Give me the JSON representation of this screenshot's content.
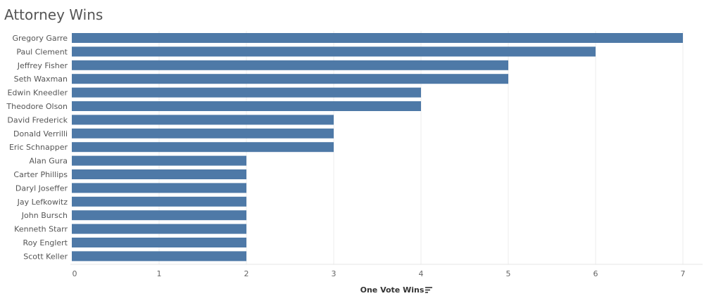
{
  "chart_data": {
    "type": "bar",
    "orientation": "horizontal",
    "title": "Attorney Wins",
    "xlabel": "One Vote Wins",
    "ylabel": "",
    "categories": [
      "Gregory Garre",
      "Paul Clement",
      "Jeffrey Fisher",
      "Seth Waxman",
      "Edwin Kneedler",
      "Theodore Olson",
      "David Frederick",
      "Donald Verrilli",
      "Eric Schnapper",
      "Alan Gura",
      "Carter Phillips",
      "Daryl Joseffer",
      "Jay Lefkowitz",
      "John Bursch",
      "Kenneth Starr",
      "Roy Englert",
      "Scott Keller"
    ],
    "values": [
      7,
      6,
      5,
      5,
      4,
      4,
      3,
      3,
      3,
      2,
      2,
      2,
      2,
      2,
      2,
      2,
      2
    ],
    "xlim": [
      0,
      7
    ],
    "xticks": [
      "0",
      "1",
      "2",
      "3",
      "4",
      "5",
      "6",
      "7"
    ],
    "grid": true,
    "sorted_descending": true,
    "bar_color": "#4e79a7",
    "sort_icon": "sort-descending-icon"
  }
}
